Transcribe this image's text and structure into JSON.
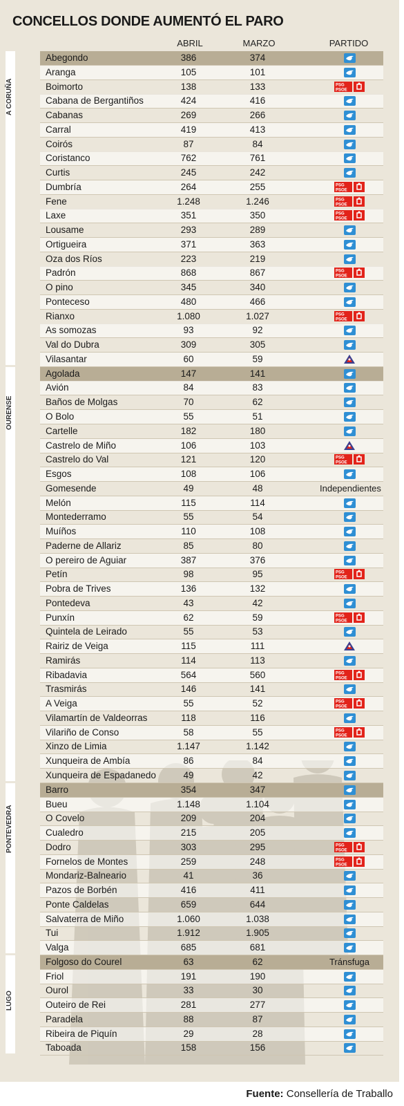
{
  "title": "CONCELLOS DONDE AUMENTÓ EL PARO",
  "headers": {
    "abril": "ABRIL",
    "marzo": "MARZO",
    "partido": "PARTIDO"
  },
  "source": {
    "label": "Fuente:",
    "text": " Consellería de Traballo"
  },
  "party_icons": {
    "pp": "pp-logo-icon",
    "psoe": "psdg-psoe-logo-icon",
    "bng": "bng-logo-icon"
  },
  "colors": {
    "pp": "#2f8fd4",
    "psoe": "#e2231a",
    "bng": "#3a3f8f",
    "panel": "#ebe6da"
  },
  "provinces": [
    {
      "name": "A CORUÑA",
      "rows": [
        [
          "Abegondo",
          "386",
          "374",
          "pp"
        ],
        [
          "Aranga",
          "105",
          "101",
          "pp"
        ],
        [
          "Boimorto",
          "138",
          "133",
          "psoe"
        ],
        [
          "Cabana de Bergantiños",
          "424",
          "416",
          "pp"
        ],
        [
          "Cabanas",
          "269",
          "266",
          "pp"
        ],
        [
          "Carral",
          "419",
          "413",
          "pp"
        ],
        [
          "Coirós",
          "87",
          "84",
          "pp"
        ],
        [
          "Coristanco",
          "762",
          "761",
          "pp"
        ],
        [
          "Curtis",
          "245",
          "242",
          "pp"
        ],
        [
          "Dumbría",
          "264",
          "255",
          "psoe"
        ],
        [
          "Fene",
          "1.248",
          "1.246",
          "psoe"
        ],
        [
          "Laxe",
          "351",
          "350",
          "psoe"
        ],
        [
          "Lousame",
          "293",
          "289",
          "pp"
        ],
        [
          "Ortigueira",
          "371",
          "363",
          "pp"
        ],
        [
          "Oza dos Ríos",
          "223",
          "219",
          "pp"
        ],
        [
          "Padrón",
          "868",
          "867",
          "psoe"
        ],
        [
          "O pino",
          "345",
          "340",
          "pp"
        ],
        [
          "Ponteceso",
          "480",
          "466",
          "pp"
        ],
        [
          "Rianxo",
          "1.080",
          "1.027",
          "psoe"
        ],
        [
          "As somozas",
          "93",
          "92",
          "pp"
        ],
        [
          "Val do Dubra",
          "309",
          "305",
          "pp"
        ],
        [
          "Vilasantar",
          "60",
          "59",
          "bng"
        ]
      ]
    },
    {
      "name": "OURENSE",
      "rows": [
        [
          "Agolada",
          "147",
          "141",
          "pp"
        ],
        [
          "Avión",
          "84",
          "83",
          "pp"
        ],
        [
          "Baños de Molgas",
          "70",
          "62",
          "pp"
        ],
        [
          "O Bolo",
          "55",
          "51",
          "pp"
        ],
        [
          "Cartelle",
          "182",
          "180",
          "pp"
        ],
        [
          "Castrelo de Miño",
          "106",
          "103",
          "bng"
        ],
        [
          "Castrelo do Val",
          "121",
          "120",
          "psoe"
        ],
        [
          "Esgos",
          "108",
          "106",
          "pp"
        ],
        [
          "Gomesende",
          "49",
          "48",
          "Independientes"
        ],
        [
          "Melón",
          "115",
          "114",
          "pp"
        ],
        [
          "Montederramo",
          "55",
          "54",
          "pp"
        ],
        [
          "Muíños",
          "110",
          "108",
          "pp"
        ],
        [
          "Paderne de Allariz",
          "85",
          "80",
          "pp"
        ],
        [
          "O pereiro de Aguiar",
          "387",
          "376",
          "pp"
        ],
        [
          "Petín",
          "98",
          "95",
          "psoe"
        ],
        [
          "Pobra de Trives",
          "136",
          "132",
          "pp"
        ],
        [
          "Pontedeva",
          "43",
          "42",
          "pp"
        ],
        [
          "Punxín",
          "62",
          "59",
          "psoe"
        ],
        [
          "Quintela de Leirado",
          "55",
          "53",
          "pp"
        ],
        [
          "Rairiz de Veiga",
          "115",
          "111",
          "bng"
        ],
        [
          "Ramirás",
          "114",
          "113",
          "pp"
        ],
        [
          "Ribadavia",
          "564",
          "560",
          "psoe"
        ],
        [
          "Trasmirás",
          "146",
          "141",
          "pp"
        ],
        [
          "A Veiga",
          "55",
          "52",
          "psoe"
        ],
        [
          "Vilamartín de Valdeorras",
          "118",
          "116",
          "pp"
        ],
        [
          "Vilariño de Conso",
          "58",
          "55",
          "psoe"
        ],
        [
          "Xinzo de Limia",
          "1.147",
          "1.142",
          "pp"
        ],
        [
          "Xunqueira de Ambía",
          "86",
          "84",
          "pp"
        ],
        [
          "Xunqueira de Espadanedo",
          "49",
          "42",
          "pp"
        ]
      ]
    },
    {
      "name": "PONTEVEDRA",
      "rows": [
        [
          "Barro",
          "354",
          "347",
          "pp"
        ],
        [
          "Bueu",
          "1.148",
          "1.104",
          "pp"
        ],
        [
          "O Covelo",
          "209",
          "204",
          "pp"
        ],
        [
          "Cualedro",
          "215",
          "205",
          "pp"
        ],
        [
          "Dodro",
          "303",
          "295",
          "psoe"
        ],
        [
          "Fornelos de Montes",
          "259",
          "248",
          "psoe"
        ],
        [
          "Mondariz-Balneario",
          "41",
          "36",
          "pp"
        ],
        [
          "Pazos de Borbén",
          "416",
          "411",
          "pp"
        ],
        [
          "Ponte Caldelas",
          "659",
          "644",
          "pp"
        ],
        [
          "Salvaterra de Miño",
          "1.060",
          "1.038",
          "pp"
        ],
        [
          "Tui",
          "1.912",
          "1.905",
          "pp"
        ],
        [
          "Valga",
          "685",
          "681",
          "pp"
        ]
      ]
    },
    {
      "name": "LUGO",
      "rows": [
        [
          "Folgoso do Courel",
          "63",
          "62",
          "Tránsfuga"
        ],
        [
          "Friol",
          "191",
          "190",
          "pp"
        ],
        [
          "Ourol",
          "33",
          "30",
          "pp"
        ],
        [
          "Outeiro de Rei",
          "281",
          "277",
          "pp"
        ],
        [
          "Paradela",
          "88",
          "87",
          "pp"
        ],
        [
          "Ribeira de Piquín",
          "29",
          "28",
          "pp"
        ],
        [
          "Taboada",
          "158",
          "156",
          "pp"
        ]
      ]
    }
  ]
}
